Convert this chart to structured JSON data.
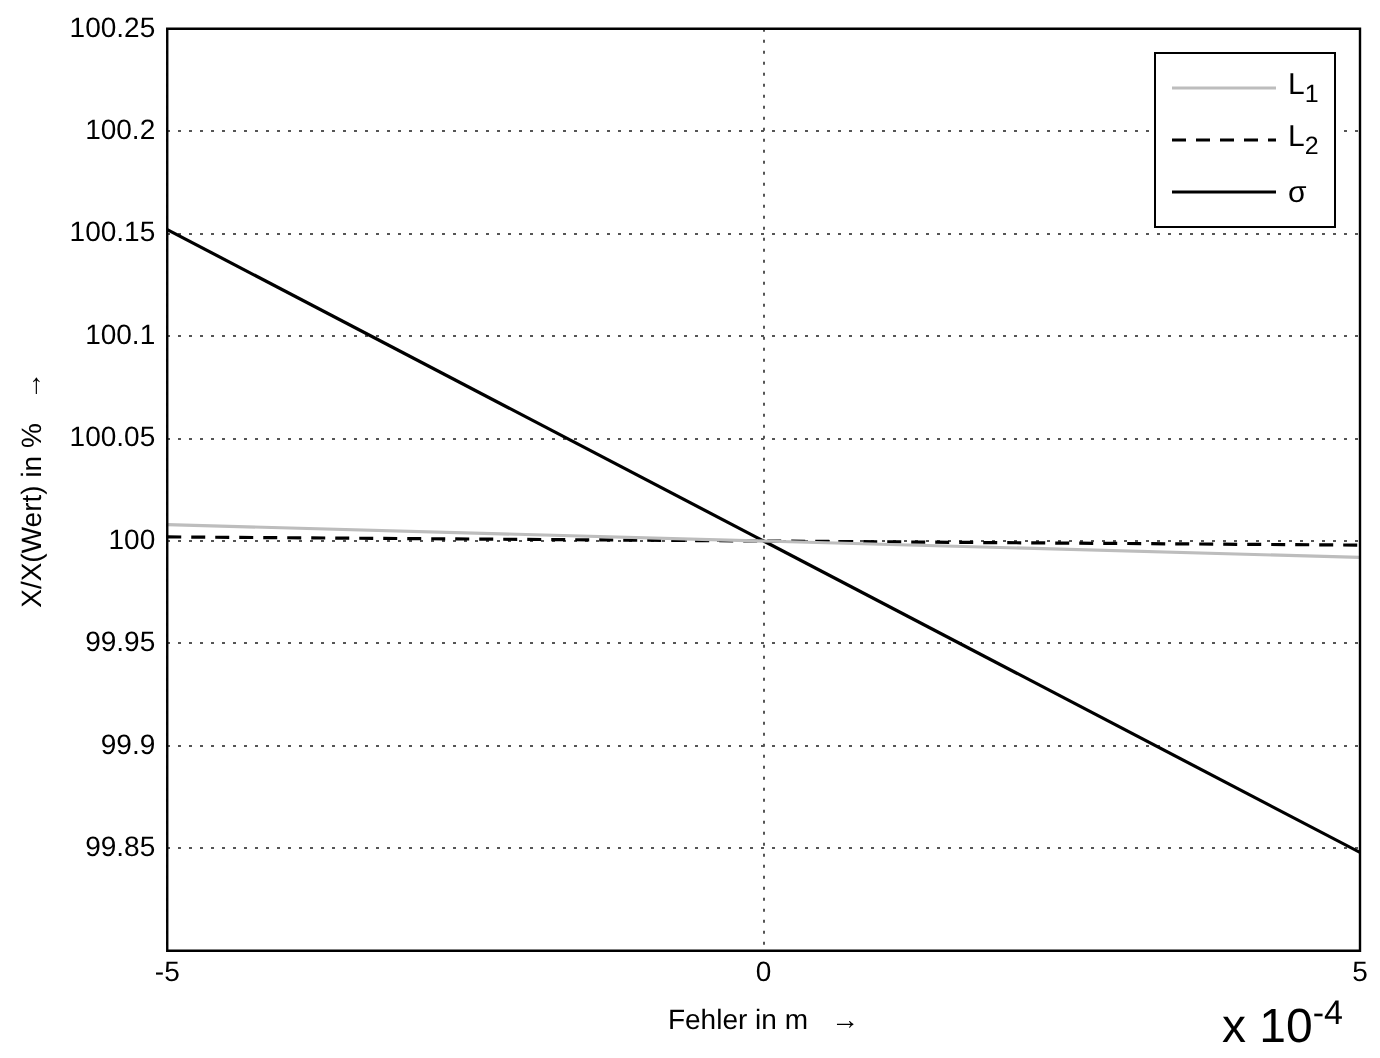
{
  "chart_data": {
    "type": "line",
    "xlabel": "Fehler in m   →",
    "ylabel": "X/X(Wert) in %   →",
    "x": [
      -5,
      5
    ],
    "series": [
      {
        "name": "L$_{1}$",
        "color": "#bdbdbd",
        "values": [
          100.008,
          99.992
        ]
      },
      {
        "name": "L$_{2}$",
        "color": "#000000",
        "line_style": "dashed",
        "values": [
          100.002,
          99.998
        ]
      },
      {
        "name": "σ",
        "color": "#000000",
        "values": [
          100.152,
          99.848
        ]
      }
    ],
    "xlim": [
      -5,
      5
    ],
    "xticks": [
      -5,
      0,
      5
    ],
    "ylim": [
      99.8,
      100.25
    ],
    "yticks": [
      99.85,
      99.9,
      99.95,
      100,
      100.05,
      100.1,
      100.15,
      100.2,
      100.25
    ],
    "grid": true,
    "legend": "top right",
    "marker": "none",
    "annotations": [
      "x 10$^{-4}$"
    ]
  }
}
